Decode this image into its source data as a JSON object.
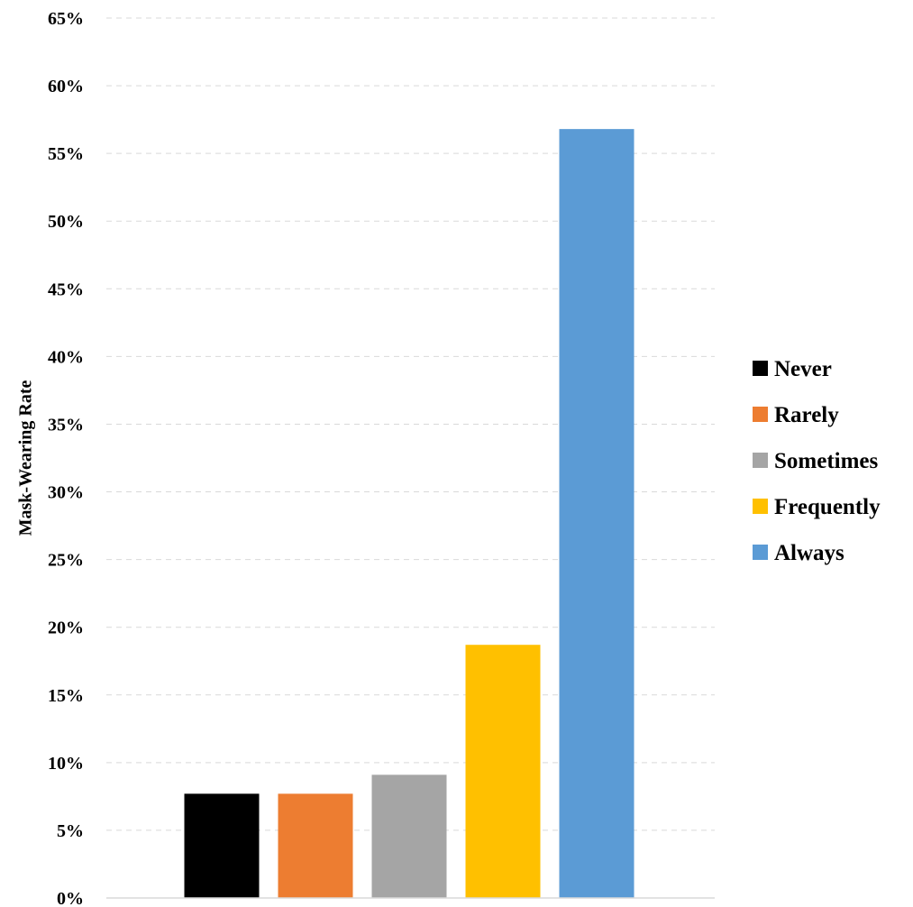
{
  "chart_data": {
    "type": "bar",
    "categories": [
      "Never",
      "Rarely",
      "Sometimes",
      "Frequently",
      "Always"
    ],
    "values": [
      7.7,
      7.7,
      9.1,
      18.7,
      56.8
    ],
    "value_unit": "%",
    "colors": [
      "#000000",
      "#ED7D31",
      "#A5A5A5",
      "#FFC000",
      "#5B9BD5"
    ],
    "ylabel": "Mask-Wearing Rate",
    "ylim": [
      0,
      65
    ],
    "yticks": [
      "0%",
      "5%",
      "10%",
      "15%",
      "20%",
      "25%",
      "30%",
      "35%",
      "40%",
      "45%",
      "50%",
      "55%",
      "60%",
      "65%"
    ],
    "grid": true,
    "legend": {
      "placement": "right",
      "entries": [
        "Never",
        "Rarely",
        "Sometimes",
        "Frequently",
        "Always"
      ]
    }
  }
}
